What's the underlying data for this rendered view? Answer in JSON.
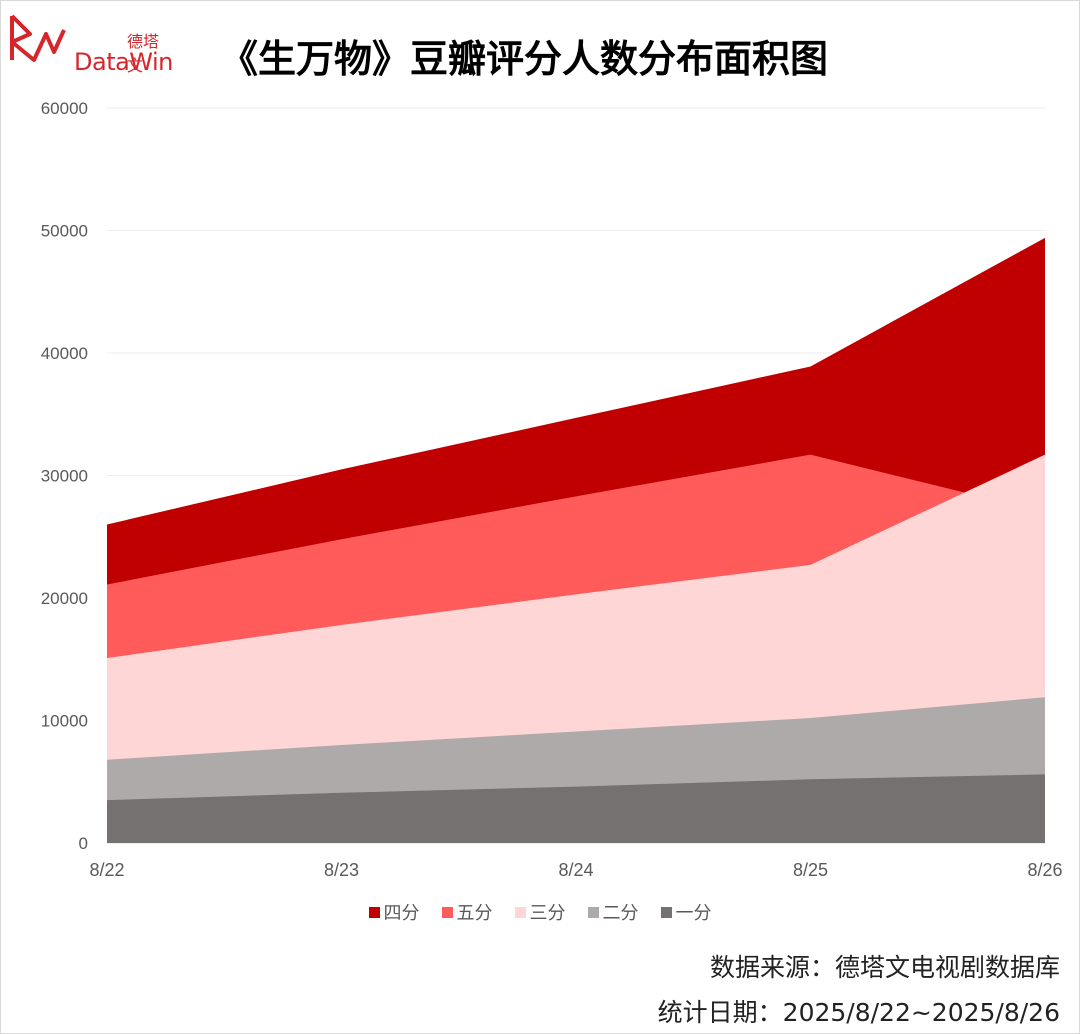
{
  "header": {
    "logo_cn": "德塔文",
    "logo_en": "DataWin",
    "title": "《生万物》豆瓣评分人数分布面积图"
  },
  "footer": {
    "source": "数据来源：德塔文电视剧数据库",
    "period": "统计日期：2025/8/22~2025/8/26"
  },
  "colors": {
    "four": "#c00000",
    "five": "#ff5b5b",
    "three": "#ffd6d6",
    "two": "#aeaaaa",
    "one": "#767171",
    "brand": "#d6262c"
  },
  "chart_data": {
    "type": "area",
    "stacked": false,
    "categories": [
      "8/22",
      "8/23",
      "8/24",
      "8/25",
      "8/26"
    ],
    "ylim": [
      0,
      60000
    ],
    "yticks": [
      0,
      10000,
      20000,
      30000,
      40000,
      50000,
      60000
    ],
    "grid": true,
    "legend_position": "bottom",
    "series": [
      {
        "name": "四分",
        "color": "#c00000",
        "values": [
          26000,
          30500,
          34700,
          38900,
          49400
        ]
      },
      {
        "name": "五分",
        "color": "#ff5b5b",
        "values": [
          21100,
          24800,
          28300,
          31700,
          27000
        ]
      },
      {
        "name": "三分",
        "color": "#ffd6d6",
        "values": [
          15100,
          17800,
          20300,
          22700,
          31700
        ]
      },
      {
        "name": "二分",
        "color": "#aeaaaa",
        "values": [
          6800,
          8000,
          9100,
          10200,
          11900
        ]
      },
      {
        "name": "一分",
        "color": "#767171",
        "values": [
          3500,
          4100,
          4600,
          5200,
          5600
        ]
      }
    ]
  }
}
